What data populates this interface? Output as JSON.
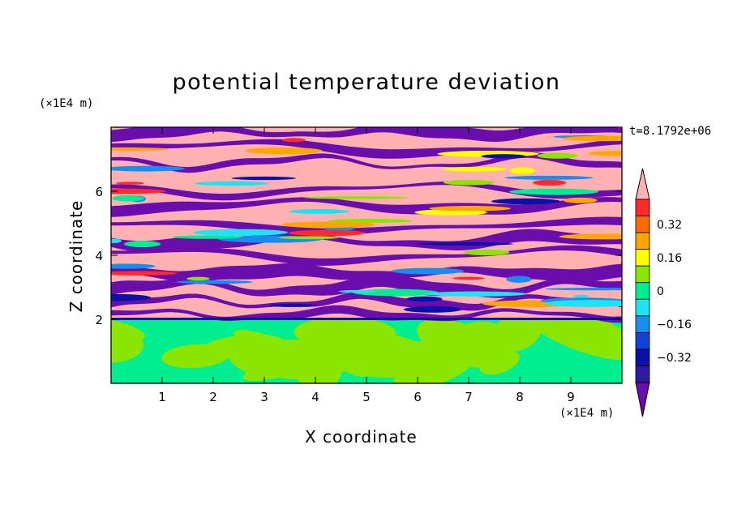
{
  "chart_data": {
    "type": "heatmap",
    "title": "potential temperature deviation",
    "time_label": "t=8.1792e+06",
    "xlabel": "X coordinate",
    "ylabel": "Z coordinate",
    "x_unit": "(×1E4 m)",
    "y_unit": "(×1E4 m)",
    "xlim": [
      0,
      10
    ],
    "ylim": [
      0,
      8
    ],
    "x_ticks": [
      1,
      2,
      3,
      4,
      5,
      6,
      7,
      8,
      9
    ],
    "y_ticks": [
      2,
      4,
      6
    ],
    "colorbar": {
      "levels": [
        -0.48,
        -0.4,
        -0.32,
        -0.24,
        -0.16,
        -0.08,
        0,
        0.08,
        0.16,
        0.24,
        0.32,
        0.4,
        0.48
      ],
      "colors": [
        "#6a0dad",
        "#2e1a9e",
        "#0a10a8",
        "#1340d8",
        "#1a8cf0",
        "#1ee3f0",
        "#00ee90",
        "#8ae600",
        "#ffff00",
        "#ffa500",
        "#ff6a00",
        "#ff2a2a",
        "#ffb0b0"
      ],
      "tick_labels": [
        "0.32",
        "0.16",
        "0",
        "−0.16",
        "−0.32"
      ],
      "extend": "both"
    },
    "regions": [
      {
        "z_range": [
          0,
          2
        ],
        "description_values": "mostly -0.08 to 0.08 (green / yellow-green)"
      },
      {
        "z_range": [
          2,
          8
        ],
        "description_values": "alternating layers near +0.48 (pink) and -0.48 (purple), with thin mixed bands"
      }
    ]
  }
}
